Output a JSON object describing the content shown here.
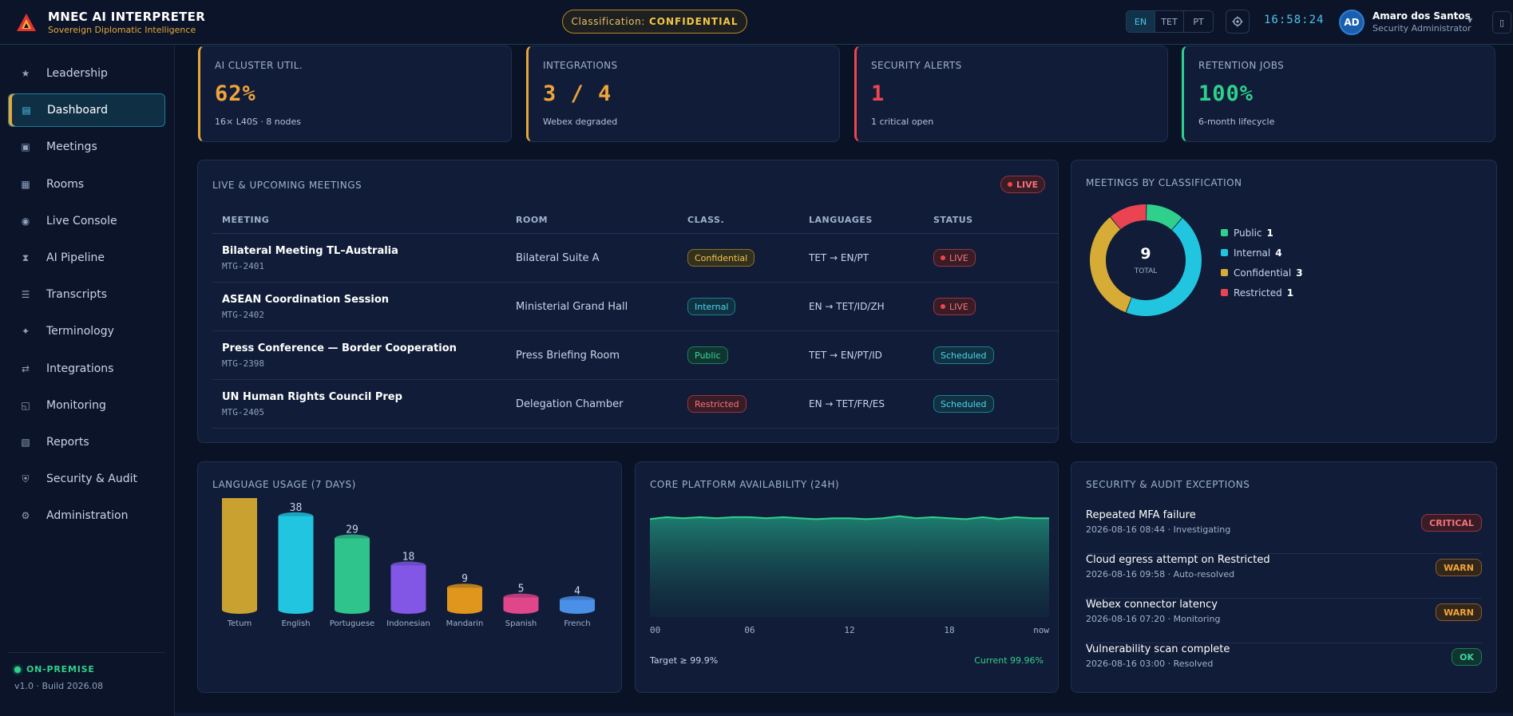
{
  "brand": {
    "title": "MNEC AI INTERPRETER",
    "subtitle": "Sovereign Diplomatic Intelligence"
  },
  "classification": {
    "label": "Classification:",
    "value": "CONFIDENTIAL"
  },
  "languages": [
    {
      "label": "EN",
      "active": true
    },
    {
      "label": "TET",
      "active": false
    },
    {
      "label": "PT",
      "active": false
    }
  ],
  "clock": "16:58:24",
  "user": {
    "initials": "AD",
    "name": "Amaro dos Santos",
    "role": "Security Administrator"
  },
  "sidebar": {
    "items": [
      {
        "label": "Leadership",
        "icon": "star-icon",
        "glyph": "★"
      },
      {
        "label": "Dashboard",
        "icon": "dashboard-icon",
        "glyph": "▤",
        "active": true
      },
      {
        "label": "Meetings",
        "icon": "meetings-icon",
        "glyph": "▣"
      },
      {
        "label": "Rooms",
        "icon": "rooms-icon",
        "glyph": "▦"
      },
      {
        "label": "Live Console",
        "icon": "live-console-icon",
        "glyph": "◉"
      },
      {
        "label": "AI Pipeline",
        "icon": "pipeline-icon",
        "glyph": "⧗"
      },
      {
        "label": "Transcripts",
        "icon": "transcripts-icon",
        "glyph": "☰"
      },
      {
        "label": "Terminology",
        "icon": "terminology-icon",
        "glyph": "✦"
      },
      {
        "label": "Integrations",
        "icon": "integrations-icon",
        "glyph": "⇄"
      },
      {
        "label": "Monitoring",
        "icon": "monitoring-icon",
        "glyph": "◱"
      },
      {
        "label": "Reports",
        "icon": "reports-icon",
        "glyph": "▧"
      },
      {
        "label": "Security & Audit",
        "icon": "shield-icon",
        "glyph": "⛨"
      },
      {
        "label": "Administration",
        "icon": "gear-icon",
        "glyph": "⚙"
      }
    ],
    "footer": {
      "status": "ON-PREMISE",
      "build": "v1.0 · Build 2026.08"
    }
  },
  "kpis": [
    {
      "label": "AI CLUSTER UTIL.",
      "value": "62%",
      "sub": "16× L40S · 8 nodes",
      "color": "#f0a43a"
    },
    {
      "label": "INTEGRATIONS",
      "value": "3 / 4",
      "sub": "Webex degraded",
      "color": "#f0a43a"
    },
    {
      "label": "SECURITY ALERTS",
      "value": "1",
      "sub": "1 critical open",
      "color": "#f0444f"
    },
    {
      "label": "RETENTION JOBS",
      "value": "100%",
      "sub": "6-month lifecycle",
      "color": "#2fd08c"
    }
  ],
  "meetings": {
    "title": "LIVE & UPCOMING MEETINGS",
    "live_badge": "LIVE",
    "columns": [
      "MEETING",
      "ROOM",
      "CLASS.",
      "LANGUAGES",
      "STATUS"
    ],
    "rows": [
      {
        "name": "Bilateral Meeting TL–Australia",
        "id": "MTG-2401",
        "room": "Bilateral Suite A",
        "class": "Confidential",
        "class_style": "b-conf",
        "languages": "TET → EN/PT",
        "status": "LIVE",
        "status_style": "live"
      },
      {
        "name": "ASEAN Coordination Session",
        "id": "MTG-2402",
        "room": "Ministerial Grand Hall",
        "class": "Internal",
        "class_style": "b-int",
        "languages": "EN → TET/ID/ZH",
        "status": "LIVE",
        "status_style": "live"
      },
      {
        "name": "Press Conference — Border Cooperation",
        "id": "MTG-2398",
        "room": "Press Briefing Room",
        "class": "Public",
        "class_style": "b-pub",
        "languages": "TET → EN/PT/ID",
        "status": "Scheduled",
        "status_style": "sched"
      },
      {
        "name": "UN Human Rights Council Prep",
        "id": "MTG-2405",
        "room": "Delegation Chamber",
        "class": "Restricted",
        "class_style": "b-res",
        "languages": "EN → TET/FR/ES",
        "status": "Scheduled",
        "status_style": "sched"
      }
    ]
  },
  "classification_chart": {
    "title": "MEETINGS BY CLASSIFICATION",
    "total": "9",
    "total_label": "TOTAL"
  },
  "language_usage": {
    "title": "LANGUAGE USAGE (7 DAYS)"
  },
  "availability": {
    "title": "CORE PLATFORM AVAILABILITY (24H)",
    "target": "Target ≥ 99.9%",
    "current": "Current 99.96%"
  },
  "audit": {
    "title": "SECURITY & AUDIT EXCEPTIONS",
    "items": [
      {
        "title": "Repeated MFA failure",
        "meta": "2026-08-16 08:44 · Investigating",
        "severity": "CRITICAL",
        "style": "sev-critical"
      },
      {
        "title": "Cloud egress attempt on Restricted",
        "meta": "2026-08-16 09:58 · Auto-resolved",
        "severity": "WARN",
        "style": "sev-warn"
      },
      {
        "title": "Webex connector latency",
        "meta": "2026-08-16 07:20 · Monitoring",
        "severity": "WARN",
        "style": "sev-warn"
      },
      {
        "title": "Vulnerability scan complete",
        "meta": "2026-08-16 03:00 · Resolved",
        "severity": "OK",
        "style": "sev-ok"
      }
    ]
  },
  "chart_data": [
    {
      "type": "pie",
      "title": "MEETINGS BY CLASSIFICATION",
      "categories": [
        "Public",
        "Internal",
        "Confidential",
        "Restricted"
      ],
      "values": [
        1,
        4,
        3,
        1
      ],
      "colors": [
        "#2fd08c",
        "#22c5e0",
        "#d6ac36",
        "#ea4452"
      ],
      "legend": "right"
    },
    {
      "type": "bar",
      "title": "LANGUAGE USAGE (7 DAYS)",
      "categories": [
        "Tetum",
        "English",
        "Portuguese",
        "Indonesian",
        "Mandarin",
        "Spanish",
        "French"
      ],
      "values": [
        47,
        38,
        29,
        18,
        9,
        5,
        4
      ],
      "colors": [
        "#c9a130",
        "#22c5e0",
        "#2fc48c",
        "#8257e5",
        "#e0951c",
        "#e0468a",
        "#4a90e8"
      ],
      "ylim": [
        0,
        47
      ]
    },
    {
      "type": "area",
      "title": "CORE PLATFORM AVAILABILITY (24H)",
      "x_ticks": [
        "00",
        "06",
        "12",
        "18",
        "now"
      ],
      "x": [
        0,
        1,
        2,
        3,
        4,
        5,
        6,
        7,
        8,
        9,
        10,
        11,
        12,
        13,
        14,
        15,
        16,
        17,
        18,
        19,
        20,
        21,
        22,
        23,
        24
      ],
      "values": [
        99.95,
        99.97,
        99.96,
        99.97,
        99.96,
        99.97,
        99.97,
        99.96,
        99.97,
        99.96,
        99.95,
        99.96,
        99.96,
        99.95,
        99.96,
        99.98,
        99.96,
        99.97,
        99.96,
        99.95,
        99.97,
        99.95,
        99.97,
        99.96,
        99.96
      ]
    }
  ]
}
